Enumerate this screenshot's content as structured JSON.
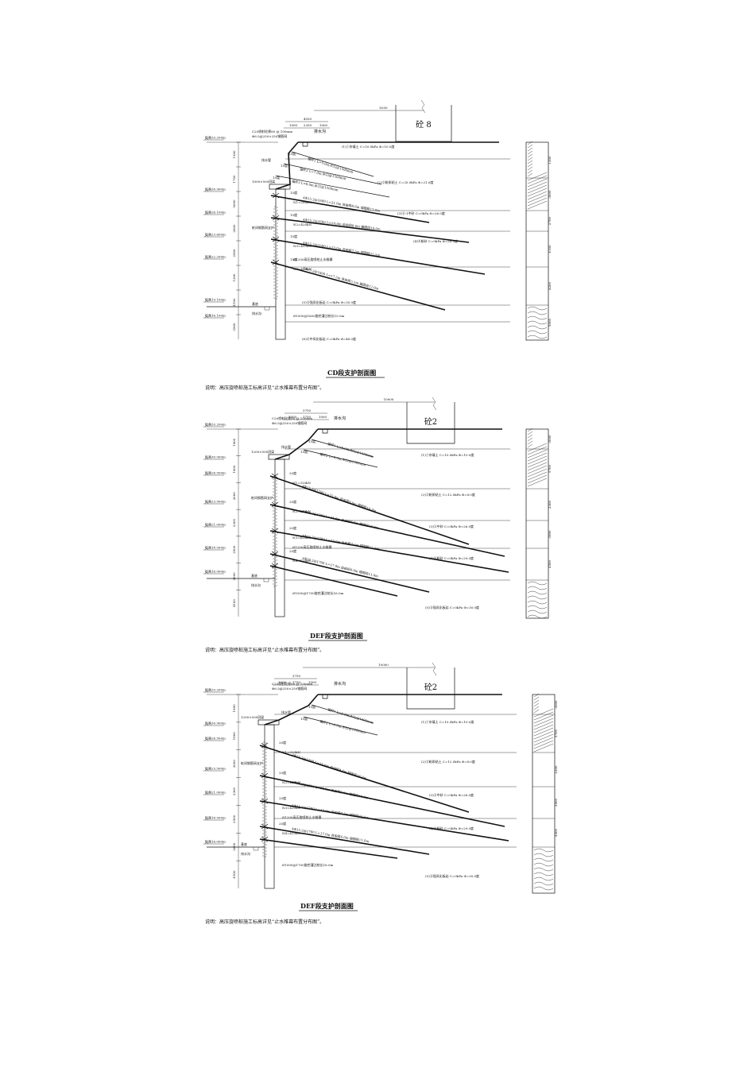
{
  "sections": [
    {
      "id": "cd",
      "caption": "CD段支护剖面图",
      "note": "说明：高压旋喷桩施工标高详见“止水帷幕布置分布图”。",
      "top_dim": "8200",
      "dims": [
        "4550",
        "1000",
        "2350",
        "1000"
      ],
      "building": "砼 8",
      "labels": {
        "drain_ditch": "排水沟",
        "crown_beam": "C20喷射砼厚80 @ 100mm",
        "mesh": "Φ6.5@250×250钢筋网",
        "pipe": "排水管",
        "beam": "1000×500冠梁",
        "pile_note": "桩间钢筋网支护",
        "curtain": "Ø1200高压旋喷桩止水帷幕",
        "pile": "Ø1000@1600旋挖灌注桩长15.0m",
        "pit_bottom": "基底",
        "sump": "排水沟"
      },
      "anchors": [
        "锚杆1 L=9.0m,Φ32@1500mm",
        "锚杆2 L=7.0m,Φ32@1500mm",
        "锚杆3 L=8.0m,Φ32@1500mm",
        "4Φ15.2@1600 L=21.0m 自由段8.0m 锚固段13.0m",
        "4Φ15.2@1600 L=24.0m 自由段8.0m 锚固段16.0m",
        "4Φ15.2@1600 L=23.0m 自由段7.5m 锚固段15.5m",
        "4Φ15.2@1600 L=17.5m 自由段5.5m 锚固段12.0m"
      ],
      "anchor_angles": [
        "15度",
        "15度",
        "15度",
        "15度",
        "15度",
        "15度",
        "15度"
      ],
      "layers": [
        "(1)①杂填土 C=10.0kPa Φ=10.0度",
        "(2)②粉质粘土 C=35.0kPa Φ=21.0度",
        "(3)③-1中砂 C=0kPa Φ=26.0度",
        "(4)④粉砂 C=0kPa Φ=28.0度",
        "(5)⑤强风化板岩 C=0kPa Φ=35.0度",
        "(6)⑥中风化板岩 C=0kPa Φ=48.0度"
      ],
      "elevations": [
        "标高33.200m",
        "标高30.900m",
        "标高26.100m",
        "标高23.600m",
        "标高22.200m",
        "标高19.100m",
        "标高16.100m"
      ],
      "depth_dims": [
        "1500",
        "1700",
        "5000",
        "2800",
        "2900",
        "1300",
        "4100",
        "3900"
      ],
      "column_dims": [
        "1300",
        "3600",
        "2700",
        "4100",
        "4200",
        "5000"
      ],
      "forces": [
        "N1=286kN",
        "N2=420kN",
        "N3=420kN",
        "N4=420kN"
      ]
    },
    {
      "id": "def1",
      "caption": "DEF段支护剖面图",
      "note": "说明：高压旋喷桩施工标高详见“止水帷幕布置分布图”。",
      "top_dim": "10000",
      "dims": [
        "3750",
        "1000",
        "1750",
        "1000"
      ],
      "building": "砼2",
      "labels": {
        "drain_ditch": "排水沟",
        "crown_beam": "C20喷射砼厚80 @ 100mm",
        "mesh": "Φ6.5@250×250钢筋网",
        "pipe": "排水管",
        "beam": "1200×500冠梁",
        "pile_note": "桩间钢筋网支护",
        "curtain": "Ø1200高压旋喷桩止水帷幕",
        "pile": "Ø1000@1700旋挖灌注桩长16.0m",
        "pit_bottom": "基底",
        "sump": "排水沟"
      },
      "anchors": [
        "锚杆1 L=9.0m,Φ32@1500mm",
        "锚杆2 L=6.0m,Φ32@1500mm",
        "4Φ15.2@1700 L=25.0m 自由段9.0m 锚固段16.0m",
        "4Φ15.2@1700 L=24.0m 自由段8.0m 锚固段16.0m",
        "4Φ15.2@1700 L=23.0m 自由段7.5m 锚固段15.5m",
        "4Φ15.2@1700 L=17.0m 自由段6.0m 锚固段11.0m"
      ],
      "anchor_angles": [
        "15度",
        "15度",
        "20度",
        "20度",
        "20度",
        "20度"
      ],
      "layers": [
        "(1)①杂填土 C=10.0kPa Φ=10.0度",
        "(2)②粉质粘土 C=12.0kPa Φ=8.0度",
        "(3)③中砂 C=0kPa Φ=26.0度",
        "(4)④粉砂 C=0kPa Φ=29.0度",
        "(5)⑤强风化板岩 C=0kPa Φ=30.0度"
      ],
      "elevations": [
        "标高33.200m",
        "标高30.900m",
        "标高26.500m",
        "标高23.500m",
        "标高21.000m",
        "标高18.500m",
        "标高16.000m"
      ],
      "depth_dims": [
        "1900",
        "1900",
        "3000",
        "2300",
        "2500",
        "2600",
        "4100"
      ],
      "column_dims": [
        "3000",
        "5700",
        "2300",
        "3900",
        "4500"
      ],
      "forces": [
        "N1=320kN",
        "N2=420kN",
        "N3=420kN",
        "N4=420kN"
      ]
    },
    {
      "id": "def2",
      "caption": "DEF段支护剖面图",
      "note": "说明：高压旋喷桩施工标高详见“止水帷幕布置分布图”。",
      "top_dim": "10000",
      "dims": [
        "3750",
        "1000",
        "1750",
        "1000"
      ],
      "building": "砼2",
      "labels": {
        "drain_ditch": "排水沟",
        "crown_beam": "C20喷射砼厚80 @ 100mm",
        "mesh": "Φ6.5@250×250钢筋网",
        "pipe": "排水管",
        "beam": "1200×500冠梁",
        "pile_note": "桩间钢筋网支护",
        "curtain": "Ø1200高压旋喷桩止水帷幕",
        "pile": "Ø1000@1700旋挖灌注桩长16.0m",
        "pit_bottom": "基底",
        "sump": "排水沟"
      },
      "anchors": [
        "锚杆1 L=9.0m,Φ32@1500mm",
        "锚杆2 L=6.0m,Φ32@1500mm",
        "4Φ15.2@1700 L=25.0m 自由段9.0m 锚固段16.0m",
        "4Φ15.2@1700 L=24.0m 自由段8.0m 锚固段16.0m",
        "4Φ15.2@1700 L=23.0m 自由段7.5m 锚固段15.5m",
        "4Φ15.2@1700 L=17.0m 自由段6.0m 锚固段11.0m"
      ],
      "anchor_angles": [
        "15度",
        "15度",
        "20度",
        "20度",
        "20度",
        "20度"
      ],
      "layers": [
        "(1)①杂填土 C=10.0kPa Φ=10.0度",
        "(2)②粉质粘土 C=12.0kPa Φ=8.0度",
        "(3)③中砂 C=0kPa Φ=26.0度",
        "(4)④粉砂 C=0kPa Φ=29.0度",
        "(5)⑤强风化板岩 C=0kPa Φ=30.0度"
      ],
      "elevations": [
        "标高33.200m",
        "标高30.900m",
        "标高26.500m",
        "标高23.500m",
        "标高21.000m",
        "标高18.500m",
        "标高16.000m"
      ],
      "depth_dims": [
        "1900",
        "1900",
        "3000",
        "2300",
        "2500",
        "2600",
        "4100"
      ],
      "column_dims": [
        "3000",
        "5700",
        "2300",
        "3900",
        "4500"
      ],
      "forces": [
        "N1=320kN",
        "N2=420kN",
        "N3=420kN",
        "N4=420kN"
      ]
    }
  ]
}
